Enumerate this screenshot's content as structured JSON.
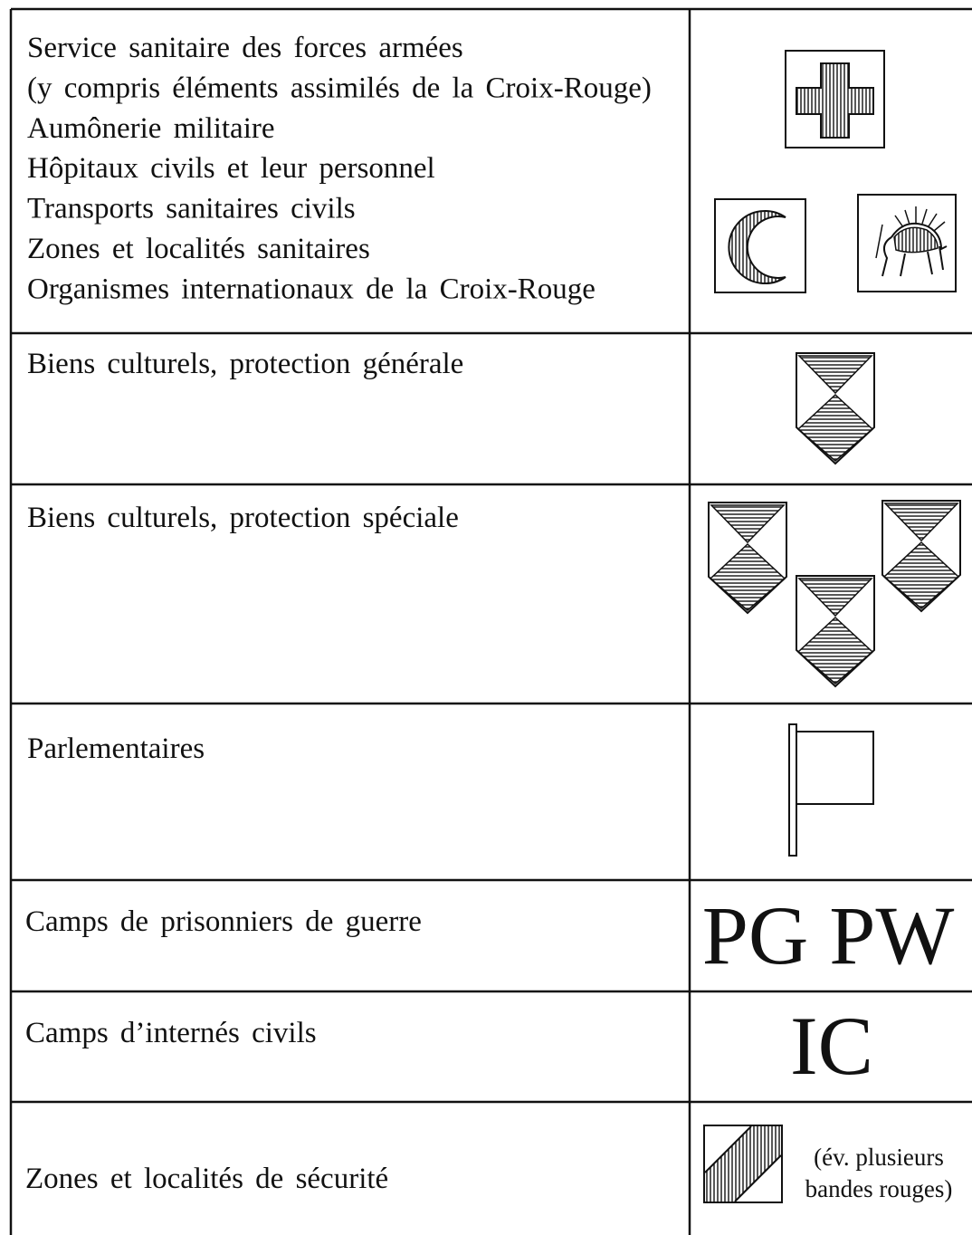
{
  "table": {
    "rows": [
      {
        "lines": [
          "Service sanitaire des forces armées",
          "(y compris éléments assimilés de la Croix-Rouge)",
          "Aumônerie militaire",
          "Hôpitaux civils et leur personnel",
          "Transports sanitaires civils",
          "Zones et localités sanitaires",
          "Organismes internationaux de la Croix-Rouge"
        ]
      },
      {
        "lines": [
          "Biens culturels, protection générale"
        ]
      },
      {
        "lines": [
          "Biens culturels, protection spéciale"
        ]
      },
      {
        "lines": [
          "Parlementaires"
        ]
      },
      {
        "lines": [
          "Camps de prisonniers de guerre"
        ],
        "symbol": "PG PW"
      },
      {
        "lines": [
          "Camps d’internés civils"
        ],
        "symbol": "IC"
      },
      {
        "lines": [
          "Zones et localités de sécurité"
        ],
        "note": [
          "(év. plusieurs",
          "bandes rouges)"
        ]
      }
    ]
  }
}
